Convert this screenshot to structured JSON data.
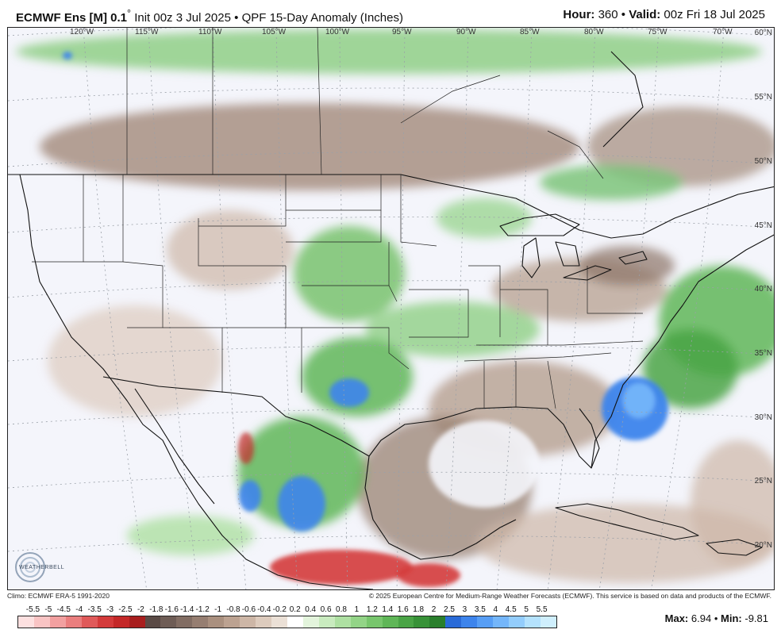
{
  "header": {
    "model": "ECMWF Ens [M]",
    "resolution": "0.1",
    "degree": "°",
    "init": "Init 00z 3 Jul 2025",
    "bullet": "•",
    "product": "QPF 15-Day Anomaly (Inches)",
    "hour_label": "Hour:",
    "hour_value": "360",
    "valid_label": "Valid:",
    "valid_value": "00z Fri 18 Jul 2025"
  },
  "map": {
    "lon_labels": [
      "120°W",
      "115°W",
      "110°W",
      "105°W",
      "100°W",
      "95°W",
      "90°W",
      "85°W",
      "80°W",
      "75°W",
      "70°W"
    ],
    "lat_labels": [
      "60°N",
      "55°N",
      "50°N",
      "45°N",
      "40°N",
      "35°N",
      "30°N",
      "25°N",
      "20°N"
    ],
    "logo_text": "WEATHERBELL"
  },
  "footer": {
    "climo": "Climo: ECMWF ERA-5 1991-2020",
    "copyright": "© 2025 European Centre for Medium-Range Weather Forecasts (ECMWF). This service is based on data and products of the ECMWF."
  },
  "colorbar": {
    "ticks": [
      "-5.5",
      "-5",
      "-4.5",
      "-4",
      "-3.5",
      "-3",
      "-2.5",
      "-2",
      "-1.8",
      "-1.6",
      "-1.4",
      "-1.2",
      "-1",
      "-0.8",
      "-0.6",
      "-0.4",
      "-0.2",
      "0.2",
      "0.4",
      "0.6",
      "0.8",
      "1",
      "1.2",
      "1.4",
      "1.6",
      "1.8",
      "2",
      "2.5",
      "3",
      "3.5",
      "4",
      "4.5",
      "5",
      "5.5"
    ],
    "colors": [
      "#fde0e0",
      "#f9c4c4",
      "#f2a0a0",
      "#ea7e7e",
      "#e05a5a",
      "#d43b3b",
      "#c42828",
      "#a81e1e",
      "#5a4a45",
      "#6e5c55",
      "#826d63",
      "#967e71",
      "#aa907f",
      "#bca291",
      "#cdb6a6",
      "#ddcbbd",
      "#ebe0d6",
      "#ffffff",
      "#e3f4dc",
      "#c9ebbf",
      "#aee0a2",
      "#93d487",
      "#78c66d",
      "#5fb657",
      "#4aa446",
      "#389238",
      "#2a7f2c",
      "#2a6bd8",
      "#3d84ec",
      "#579ef5",
      "#74b6fa",
      "#93cdfc",
      "#b4e2fd",
      "#cfeffd"
    ]
  },
  "stats": {
    "max_label": "Max:",
    "max_value": "6.94",
    "min_label": "Min:",
    "min_value": "-9.81"
  }
}
